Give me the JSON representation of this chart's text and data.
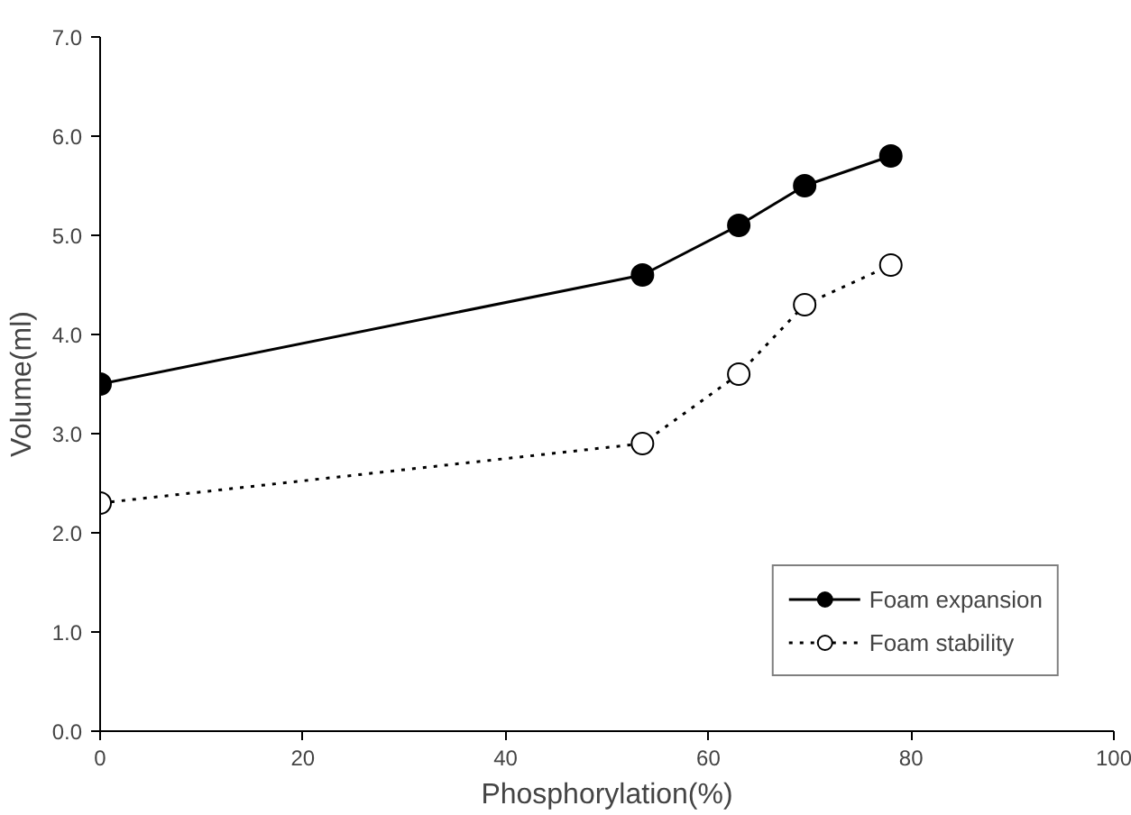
{
  "chart_data": {
    "type": "line",
    "xlabel": "Phosphorylation(%)",
    "ylabel": "Volume(ml)",
    "xlim": [
      0,
      100
    ],
    "xticks": [
      0,
      20,
      40,
      60,
      80,
      100
    ],
    "ylim": [
      0,
      7
    ],
    "yticks": [
      {
        "value": 0,
        "label": "0.0"
      },
      {
        "value": 1,
        "label": "1.0"
      },
      {
        "value": 2,
        "label": "2.0"
      },
      {
        "value": 3,
        "label": "3.0"
      },
      {
        "value": 4,
        "label": "4.0"
      },
      {
        "value": 5,
        "label": "5.0"
      },
      {
        "value": 6,
        "label": "6.0"
      },
      {
        "value": 7,
        "label": "7.0"
      }
    ],
    "x": [
      0,
      53.5,
      63,
      69.5,
      78
    ],
    "series": [
      {
        "name": "Foam expansion",
        "color": "#000000",
        "values": [
          3.5,
          4.6,
          5.1,
          5.5,
          5.8
        ],
        "line_style": "solid"
      },
      {
        "name": "Foam stability",
        "color": "#000000",
        "values": [
          2.3,
          2.9,
          3.6,
          4.3,
          4.7
        ],
        "line_style": "dotted"
      }
    ],
    "marker": "circle",
    "grid": false,
    "legend": "bottom right"
  }
}
